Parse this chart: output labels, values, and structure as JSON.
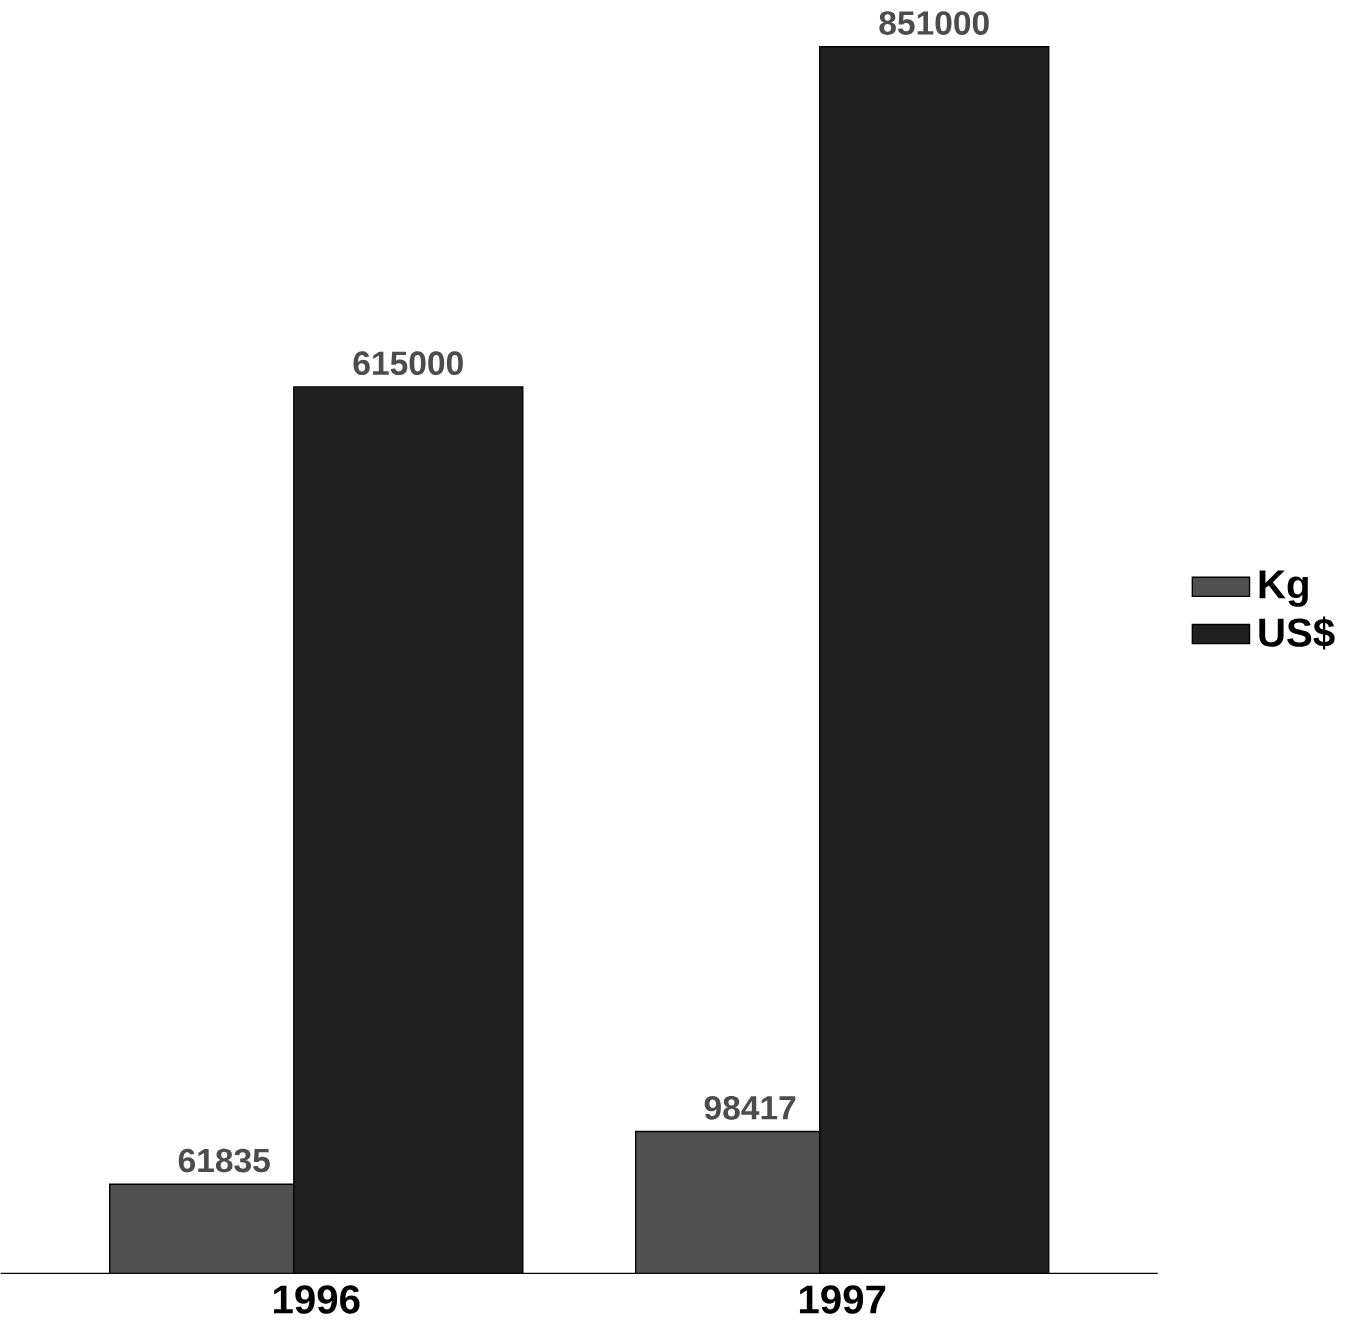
{
  "chart_data": {
    "type": "bar",
    "categories": [
      "1996",
      "1997"
    ],
    "series": [
      {
        "name": "Kg",
        "color": "#505050",
        "values": [
          61835,
          98417
        ]
      },
      {
        "name": "US$",
        "color": "#202020",
        "values": [
          615000,
          851000
        ]
      }
    ],
    "data_labels": true,
    "legend": "right"
  }
}
